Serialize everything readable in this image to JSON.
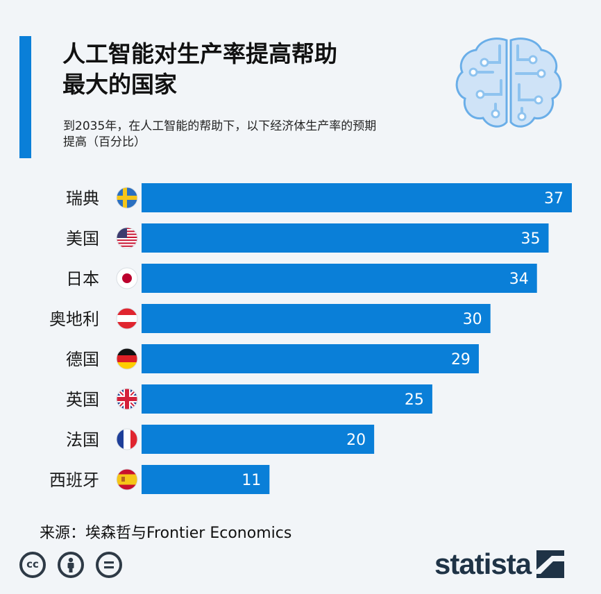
{
  "header": {
    "title_line1": "人工智能对生产率提高帮助",
    "title_line2": "最大的国家",
    "subtitle_line1": "到2035年，在人工智能的帮助下，以下经济体生产率的预期",
    "subtitle_line2": "提高（百分比）",
    "accent_color": "#0a7fd8"
  },
  "chart_data": {
    "type": "bar",
    "orientation": "horizontal",
    "categories": [
      "瑞典",
      "美国",
      "日本",
      "奥地利",
      "德国",
      "英国",
      "法国",
      "西班牙"
    ],
    "values": [
      37,
      35,
      34,
      30,
      29,
      25,
      20,
      11
    ],
    "flags": [
      "sweden",
      "usa",
      "japan",
      "austria",
      "germany",
      "uk",
      "france",
      "spain"
    ],
    "bar_color": "#0a7fd8",
    "xlim": [
      0,
      37
    ],
    "grid": false,
    "legend": "none"
  },
  "footer": {
    "source": "来源：埃森哲与Frontier Economics",
    "license_icons": [
      "cc-icon",
      "by-icon",
      "nd-icon"
    ],
    "logo_text": "statista"
  },
  "icons": {
    "brain": "brain-circuit-icon"
  }
}
